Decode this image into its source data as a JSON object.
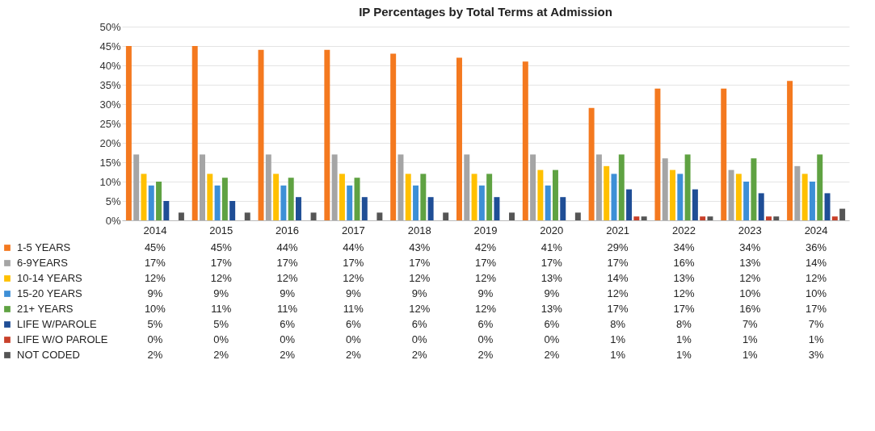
{
  "chart_data": {
    "type": "bar",
    "title": "IP Percentages by Total Terms at Admission",
    "categories": [
      "2014",
      "2015",
      "2016",
      "2017",
      "2018",
      "2019",
      "2020",
      "2021",
      "2022",
      "2023",
      "2024"
    ],
    "series": [
      {
        "name": "1-5 YEARS",
        "color": "#f4791f",
        "values": [
          45,
          45,
          44,
          44,
          43,
          42,
          41,
          29,
          34,
          34,
          36
        ],
        "value_labels": [
          "45%",
          "45%",
          "44%",
          "44%",
          "43%",
          "42%",
          "41%",
          "29%",
          "34%",
          "34%",
          "36%"
        ]
      },
      {
        "name": "6-9YEARS",
        "color": "#a5a5a5",
        "values": [
          17,
          17,
          17,
          17,
          17,
          17,
          17,
          17,
          16,
          13,
          14
        ],
        "value_labels": [
          "17%",
          "17%",
          "17%",
          "17%",
          "17%",
          "17%",
          "17%",
          "17%",
          "16%",
          "13%",
          "14%"
        ]
      },
      {
        "name": "10-14 YEARS",
        "color": "#ffc000",
        "values": [
          12,
          12,
          12,
          12,
          12,
          12,
          13,
          14,
          13,
          12,
          12
        ],
        "value_labels": [
          "12%",
          "12%",
          "12%",
          "12%",
          "12%",
          "12%",
          "13%",
          "14%",
          "13%",
          "12%",
          "12%"
        ]
      },
      {
        "name": "15-20 YEARS",
        "color": "#3d8fd6",
        "values": [
          9,
          9,
          9,
          9,
          9,
          9,
          9,
          12,
          12,
          10,
          10
        ],
        "value_labels": [
          "9%",
          "9%",
          "9%",
          "9%",
          "9%",
          "9%",
          "9%",
          "12%",
          "12%",
          "10%",
          "10%"
        ]
      },
      {
        "name": "21+ YEARS",
        "color": "#5fa242",
        "values": [
          10,
          11,
          11,
          11,
          12,
          12,
          13,
          17,
          17,
          16,
          17
        ],
        "value_labels": [
          "10%",
          "11%",
          "11%",
          "11%",
          "12%",
          "12%",
          "13%",
          "17%",
          "17%",
          "16%",
          "17%"
        ]
      },
      {
        "name": "LIFE W/PAROLE",
        "color": "#1f4e96",
        "values": [
          5,
          5,
          6,
          6,
          6,
          6,
          6,
          8,
          8,
          7,
          7
        ],
        "value_labels": [
          "5%",
          "5%",
          "6%",
          "6%",
          "6%",
          "6%",
          "6%",
          "8%",
          "8%",
          "7%",
          "7%"
        ]
      },
      {
        "name": "LIFE W/O PAROLE",
        "color": "#c8402a",
        "values": [
          0,
          0,
          0,
          0,
          0,
          0,
          0,
          1,
          1,
          1,
          1
        ],
        "value_labels": [
          "0%",
          "0%",
          "0%",
          "0%",
          "0%",
          "0%",
          "0%",
          "1%",
          "1%",
          "1%",
          "1%"
        ]
      },
      {
        "name": "NOT CODED",
        "color": "#555555",
        "values": [
          2,
          2,
          2,
          2,
          2,
          2,
          2,
          1,
          1,
          1,
          3
        ],
        "value_labels": [
          "2%",
          "2%",
          "2%",
          "2%",
          "2%",
          "2%",
          "2%",
          "1%",
          "1%",
          "1%",
          "3%"
        ]
      }
    ],
    "ylim": [
      0,
      50
    ],
    "yticks": [
      {
        "value": 0,
        "label": "0%"
      },
      {
        "value": 5,
        "label": "5%"
      },
      {
        "value": 10,
        "label": "10%"
      },
      {
        "value": 15,
        "label": "15%"
      },
      {
        "value": 20,
        "label": "20%"
      },
      {
        "value": 25,
        "label": "25%"
      },
      {
        "value": 30,
        "label": "30%"
      },
      {
        "value": 35,
        "label": "35%"
      },
      {
        "value": 40,
        "label": "40%"
      },
      {
        "value": 45,
        "label": "45%"
      },
      {
        "value": 50,
        "label": "50%"
      }
    ],
    "grid": "y",
    "legend": "bottom left"
  }
}
